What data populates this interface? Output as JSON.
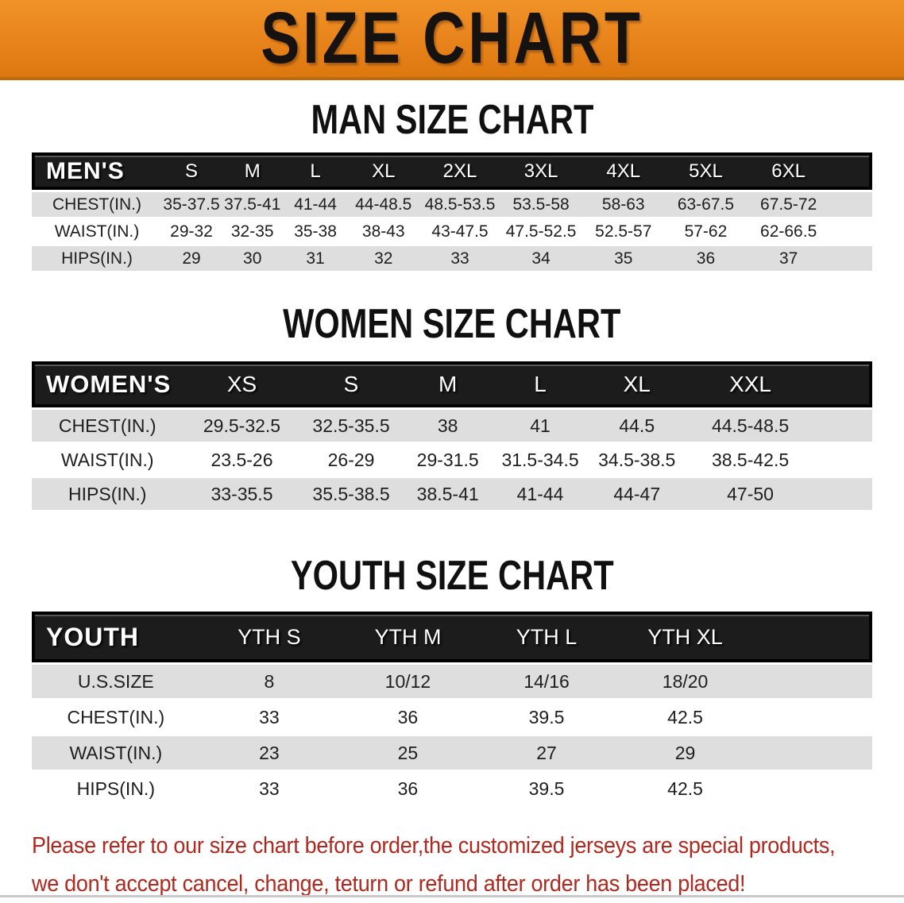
{
  "banner": {
    "title": "SIZE CHART"
  },
  "colors": {
    "banner_orange": "#E8831C",
    "header_band_black": "#1C1C1C",
    "row_stripe_gray": "#DEDEDE",
    "disclaimer_red": "#B0281E"
  },
  "sections": {
    "men": {
      "heading": "MAN SIZE CHART",
      "table": {
        "title": "MEN'S",
        "sizes": [
          "S",
          "M",
          "L",
          "XL",
          "2XL",
          "3XL",
          "4XL",
          "5XL",
          "6XL"
        ],
        "rows": [
          {
            "label": "CHEST(IN.)",
            "values": [
              "35-37.5",
              "37.5-41",
              "41-44",
              "44-48.5",
              "48.5-53.5",
              "53.5-58",
              "58-63",
              "63-67.5",
              "67.5-72"
            ]
          },
          {
            "label": "WAIST(IN.)",
            "values": [
              "29-32",
              "32-35",
              "35-38",
              "38-43",
              "43-47.5",
              "47.5-52.5",
              "52.5-57",
              "57-62",
              "62-66.5"
            ]
          },
          {
            "label": "HIPS(IN.)",
            "values": [
              "29",
              "30",
              "31",
              "32",
              "33",
              "34",
              "35",
              "36",
              "37"
            ]
          }
        ]
      }
    },
    "women": {
      "heading": "WOMEN SIZE CHART",
      "table": {
        "title": "WOMEN'S",
        "sizes": [
          "XS",
          "S",
          "M",
          "L",
          "XL",
          "XXL"
        ],
        "rows": [
          {
            "label": "CHEST(IN.)",
            "values": [
              "29.5-32.5",
              "32.5-35.5",
              "38",
              "41",
              "44.5",
              "44.5-48.5"
            ]
          },
          {
            "label": "WAIST(IN.)",
            "values": [
              "23.5-26",
              "26-29",
              "29-31.5",
              "31.5-34.5",
              "34.5-38.5",
              "38.5-42.5"
            ]
          },
          {
            "label": "HIPS(IN.)",
            "values": [
              "33-35.5",
              "35.5-38.5",
              "38.5-41",
              "41-44",
              "44-47",
              "47-50"
            ]
          }
        ]
      }
    },
    "youth": {
      "heading": "YOUTH SIZE CHART",
      "table": {
        "title": "YOUTH",
        "sizes": [
          "YTH S",
          "YTH M",
          "YTH L",
          "YTH XL"
        ],
        "rows": [
          {
            "label": "U.S.SIZE",
            "values": [
              "8",
              "10/12",
              "14/16",
              "18/20"
            ]
          },
          {
            "label": "CHEST(IN.)",
            "values": [
              "33",
              "36",
              "39.5",
              "42.5"
            ]
          },
          {
            "label": "WAIST(IN.)",
            "values": [
              "23",
              "25",
              "27",
              "29"
            ]
          },
          {
            "label": "HIPS(IN.)",
            "values": [
              "33",
              "36",
              "39.5",
              "42.5"
            ]
          }
        ]
      }
    }
  },
  "disclaimer": {
    "lines": [
      "Please refer to our size chart before order,the customized jerseys are special products,",
      "we don't accept cancel, change, teturn or refund after order has been placed!"
    ]
  }
}
